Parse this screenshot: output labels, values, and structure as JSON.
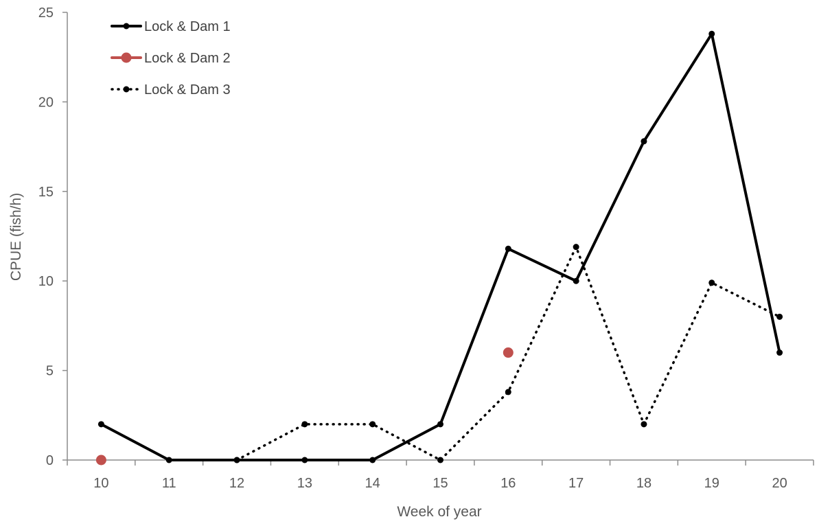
{
  "chart_data": {
    "type": "line",
    "title": "",
    "xlabel": "Week of year",
    "ylabel": "CPUE (fish/h)",
    "x": [
      10,
      11,
      12,
      13,
      14,
      15,
      16,
      17,
      18,
      19,
      20
    ],
    "x_tick_labels": [
      "10",
      "11",
      "12",
      "13",
      "14",
      "15",
      "16",
      "17",
      "18",
      "19",
      "20"
    ],
    "y_tick_labels": [
      "0",
      "5",
      "10",
      "15",
      "20",
      "25"
    ],
    "xlim": [
      9.5,
      20.5
    ],
    "ylim": [
      0,
      25
    ],
    "y_ticks": [
      0,
      5,
      10,
      15,
      20,
      25
    ],
    "grid": false,
    "legend_position": "top-left",
    "series": [
      {
        "name": "Lock & Dam 1",
        "x": [
          10,
          11,
          12,
          13,
          14,
          15,
          16,
          17,
          18,
          19,
          20
        ],
        "values": [
          2,
          0,
          0,
          0,
          0,
          2,
          11.8,
          10,
          17.8,
          23.8,
          6
        ],
        "color": "#000000",
        "line_style": "solid",
        "marker": "small-circle"
      },
      {
        "name": "Lock & Dam 2",
        "x": [
          10,
          16
        ],
        "values": [
          0,
          6
        ],
        "color": "#c0504d",
        "line_style": "none",
        "marker": "large-circle"
      },
      {
        "name": "Lock & Dam 3",
        "x": [
          12,
          13,
          14,
          15,
          16,
          17,
          18,
          19,
          20
        ],
        "values": [
          0,
          2,
          2,
          0,
          3.8,
          11.9,
          2,
          9.9,
          8
        ],
        "color": "#000000",
        "line_style": "dotted",
        "marker": "small-circle"
      }
    ]
  }
}
